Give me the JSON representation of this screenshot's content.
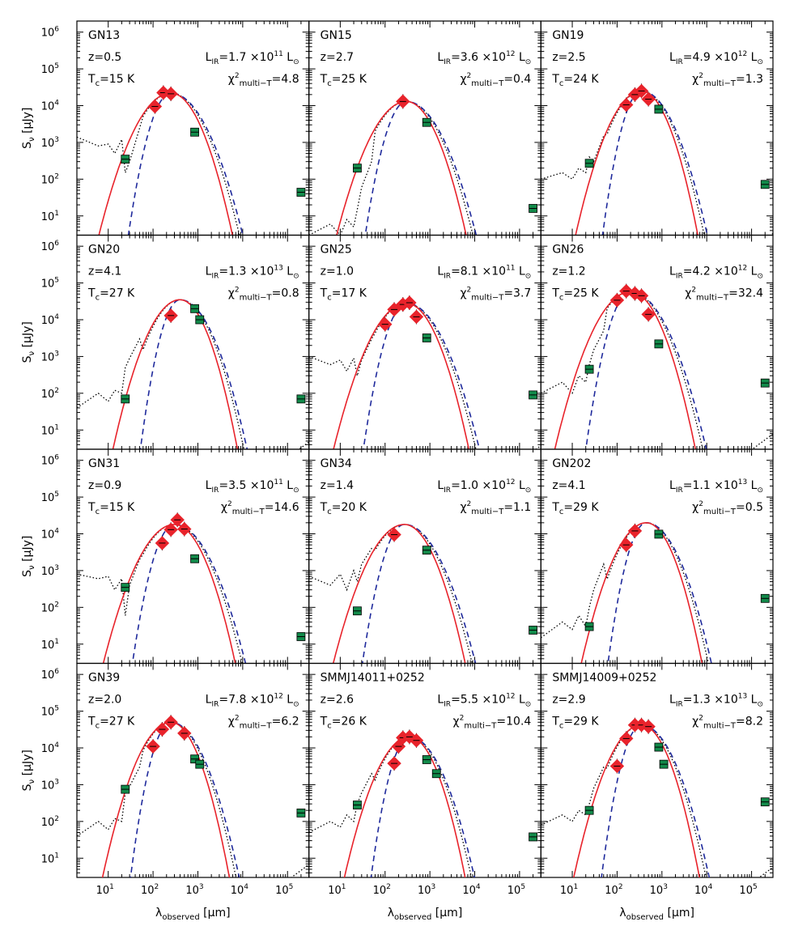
{
  "figure": {
    "ylabel": "S",
    "ylabel_sub": "ν",
    "ylabel_unit": "[μJy]",
    "xlabel": "λ",
    "xlabel_sub": "observed",
    "xlabel_unit": "[μm]",
    "y_tick_labels": [
      "10",
      "10",
      "10",
      "10",
      "10",
      "10"
    ],
    "y_tick_exps": [
      "1",
      "2",
      "3",
      "4",
      "5",
      "6"
    ],
    "x_tick_labels": [
      "10",
      "10",
      "10",
      "10",
      "10"
    ],
    "x_tick_exps": [
      "1",
      "2",
      "3",
      "4",
      "5"
    ]
  },
  "chart_data": [
    {
      "type": "scatter",
      "name": "GN13",
      "z": "z=0.5",
      "tc": "T_c=15 K",
      "lir_coef": "1.7",
      "lir_exp": "11",
      "chi2": "4.8",
      "peak": [
        250,
        22000
      ],
      "width": 0.55,
      "red_pts": [
        [
          110,
          9500
        ],
        [
          170,
          22500
        ],
        [
          250,
          21000
        ]
      ],
      "green_pts": [
        [
          24,
          350
        ],
        [
          850,
          1900
        ],
        [
          200000,
          44
        ]
      ],
      "dotted_x": [
        2,
        6,
        10,
        14,
        20,
        24,
        30
      ],
      "dotted_y": [
        1400,
        800,
        900,
        500,
        1200,
        150,
        300
      ],
      "ylim": [
        3,
        2000000
      ],
      "xlim": [
        2,
        300000
      ]
    },
    {
      "type": "scatter",
      "name": "GN15",
      "z": "z=2.7",
      "tc": "T_c=25 K",
      "lir_coef": "3.6",
      "lir_exp": "12",
      "chi2": "0.4",
      "peak": [
        300,
        13000
      ],
      "width": 0.55,
      "red_pts": [
        [
          250,
          13000
        ]
      ],
      "green_pts": [
        [
          24,
          200
        ],
        [
          850,
          3500
        ],
        [
          200000,
          16
        ]
      ],
      "dotted_x": [
        2,
        6,
        10,
        14,
        20,
        24,
        30,
        50
      ],
      "dotted_y": [
        3,
        6,
        3,
        8,
        5,
        15,
        60,
        300
      ],
      "ylim": [
        3,
        2000000
      ],
      "xlim": [
        2,
        300000
      ]
    },
    {
      "type": "scatter",
      "name": "GN19",
      "z": "z=2.5",
      "tc": "T_c=24 K",
      "lir_coef": "4.9",
      "lir_exp": "12",
      "chi2": "1.3",
      "peak": [
        350,
        25000
      ],
      "width": 0.5,
      "red_pts": [
        [
          160,
          10500
        ],
        [
          250,
          20000
        ],
        [
          350,
          25000
        ],
        [
          500,
          15000
        ]
      ],
      "green_pts": [
        [
          24,
          270
        ],
        [
          850,
          8000
        ],
        [
          200000,
          72
        ]
      ],
      "dotted_x": [
        2,
        6,
        10,
        14,
        20,
        24,
        30,
        50
      ],
      "dotted_y": [
        100,
        150,
        100,
        200,
        150,
        400,
        300,
        1500
      ],
      "ylim": [
        3,
        2000000
      ],
      "xlim": [
        2,
        300000
      ]
    },
    {
      "type": "scatter",
      "name": "GN20",
      "z": "z=4.1",
      "tc": "T_c=27 K",
      "lir_coef": "1.3",
      "lir_exp": "13",
      "chi2": "0.8",
      "peak": [
        400,
        35000
      ],
      "width": 0.5,
      "red_pts": [
        [
          250,
          13000
        ]
      ],
      "green_pts": [
        [
          24,
          70
        ],
        [
          850,
          20000
        ],
        [
          1100,
          10000
        ],
        [
          200000,
          70
        ]
      ],
      "dotted_x": [
        2,
        6,
        10,
        14,
        20,
        24,
        30,
        50
      ],
      "dotted_y": [
        40,
        100,
        60,
        120,
        100,
        500,
        900,
        3000
      ],
      "ylim": [
        3,
        2000000
      ],
      "xlim": [
        2,
        300000
      ]
    },
    {
      "type": "scatter",
      "name": "GN25",
      "z": "z=1.0",
      "tc": "T_c=17 K",
      "lir_coef": "8.1",
      "lir_exp": "11",
      "chi2": "3.7",
      "peak": [
        300,
        28000
      ],
      "width": 0.55,
      "red_pts": [
        [
          100,
          7500
        ],
        [
          160,
          19000
        ],
        [
          250,
          26000
        ],
        [
          350,
          29000
        ],
        [
          500,
          12000
        ]
      ],
      "green_pts": [
        [
          850,
          3200
        ],
        [
          200000,
          90
        ]
      ],
      "dotted_x": [
        2,
        6,
        10,
        14,
        20,
        24,
        30,
        50
      ],
      "dotted_y": [
        1000,
        600,
        800,
        400,
        900,
        300,
        800,
        3000
      ],
      "ylim": [
        3,
        2000000
      ],
      "xlim": [
        2,
        300000
      ]
    },
    {
      "type": "scatter",
      "name": "GN26",
      "z": "z=1.2",
      "tc": "T_c=25 K",
      "lir_coef": "4.2",
      "lir_exp": "12",
      "chi2": "32.4",
      "peak": [
        200,
        58000
      ],
      "width": 0.55,
      "red_pts": [
        [
          100,
          34000
        ],
        [
          160,
          60000
        ],
        [
          250,
          52000
        ],
        [
          350,
          45000
        ],
        [
          500,
          14000
        ]
      ],
      "green_pts": [
        [
          24,
          450
        ],
        [
          850,
          2200
        ],
        [
          200000,
          190
        ]
      ],
      "dotted_x": [
        2,
        6,
        10,
        14,
        20,
        24,
        30,
        50
      ],
      "dotted_y": [
        100,
        200,
        100,
        300,
        200,
        600,
        1500,
        5000
      ],
      "ylim": [
        3,
        2000000
      ],
      "xlim": [
        2,
        300000
      ]
    },
    {
      "type": "scatter",
      "name": "GN31",
      "z": "z=0.9",
      "tc": "T_c=15 K",
      "lir_coef": "3.5",
      "lir_exp": "11",
      "chi2": "14.6",
      "peak": [
        300,
        18000
      ],
      "width": 0.55,
      "red_pts": [
        [
          160,
          5600
        ],
        [
          250,
          13000
        ],
        [
          350,
          24000
        ],
        [
          500,
          13500
        ]
      ],
      "green_pts": [
        [
          24,
          350
        ],
        [
          850,
          2100
        ],
        [
          200000,
          16
        ]
      ],
      "dotted_x": [
        2,
        6,
        10,
        14,
        20,
        24,
        30,
        50
      ],
      "dotted_y": [
        800,
        600,
        700,
        300,
        600,
        60,
        400,
        2000
      ],
      "ylim": [
        3,
        2000000
      ],
      "xlim": [
        2,
        300000
      ]
    },
    {
      "type": "scatter",
      "name": "GN34",
      "z": "z=1.4",
      "tc": "T_c=20 K",
      "lir_coef": "1.0",
      "lir_exp": "12",
      "chi2": "1.1",
      "peak": [
        270,
        18000
      ],
      "width": 0.55,
      "red_pts": [
        [
          160,
          9500
        ]
      ],
      "green_pts": [
        [
          24,
          80
        ],
        [
          850,
          3600
        ],
        [
          200000,
          24
        ]
      ],
      "dotted_x": [
        2,
        6,
        10,
        14,
        20,
        24,
        30,
        50
      ],
      "dotted_y": [
        700,
        400,
        800,
        300,
        1000,
        500,
        1500,
        4000
      ],
      "ylim": [
        3,
        2000000
      ],
      "xlim": [
        2,
        300000
      ]
    },
    {
      "type": "scatter",
      "name": "GN202",
      "z": "z=4.1",
      "tc": "T_c=29 K",
      "lir_coef": "1.1",
      "lir_exp": "13",
      "chi2": "0.5",
      "peak": [
        450,
        20000
      ],
      "width": 0.5,
      "red_pts": [
        [
          160,
          5000
        ],
        [
          250,
          12000
        ]
      ],
      "green_pts": [
        [
          24,
          30
        ],
        [
          850,
          9800
        ],
        [
          200000,
          175
        ]
      ],
      "dotted_x": [
        2,
        6,
        10,
        14,
        20,
        24,
        30,
        50
      ],
      "dotted_y": [
        15,
        40,
        25,
        60,
        30,
        100,
        300,
        1500
      ],
      "ylim": [
        3,
        2000000
      ],
      "xlim": [
        2,
        300000
      ]
    },
    {
      "type": "scatter",
      "name": "GN39",
      "z": "z=2.0",
      "tc": "T_c=27 K",
      "lir_coef": "7.8",
      "lir_exp": "12",
      "chi2": "6.2",
      "peak": [
        250,
        50000
      ],
      "width": 0.5,
      "red_pts": [
        [
          100,
          11000
        ],
        [
          160,
          32000
        ],
        [
          250,
          50000
        ],
        [
          500,
          25000
        ]
      ],
      "green_pts": [
        [
          24,
          750
        ],
        [
          850,
          5000
        ],
        [
          1100,
          3600
        ],
        [
          200000,
          170
        ]
      ],
      "dotted_x": [
        2,
        6,
        10,
        14,
        20,
        24,
        30,
        50
      ],
      "dotted_y": [
        40,
        100,
        60,
        120,
        100,
        600,
        900,
        3000
      ],
      "ylim": [
        3,
        2000000
      ],
      "xlim": [
        2,
        300000
      ]
    },
    {
      "type": "scatter",
      "name": "SMMJ14011+0252",
      "z": "z=2.6",
      "tc": "T_c=26 K",
      "lir_coef": "5.5",
      "lir_exp": "12",
      "chi2": "10.4",
      "peak": [
        350,
        20000
      ],
      "width": 0.5,
      "red_pts": [
        [
          160,
          3800
        ],
        [
          200,
          11000
        ],
        [
          250,
          19000
        ],
        [
          350,
          20000
        ],
        [
          500,
          16000
        ]
      ],
      "green_pts": [
        [
          24,
          280
        ],
        [
          850,
          4800
        ],
        [
          1400,
          2000
        ],
        [
          200000,
          38
        ]
      ],
      "dotted_x": [
        2,
        6,
        10,
        14,
        20,
        24,
        30,
        50
      ],
      "dotted_y": [
        50,
        100,
        70,
        150,
        100,
        300,
        600,
        2000
      ],
      "ylim": [
        3,
        2000000
      ],
      "xlim": [
        2,
        300000
      ]
    },
    {
      "type": "scatter",
      "name": "SMMJ14009+0252",
      "z": "z=2.9",
      "tc": "T_c=29 K",
      "lir_coef": "1.3",
      "lir_exp": "13",
      "chi2": "8.2",
      "peak": [
        350,
        42000
      ],
      "width": 0.5,
      "red_pts": [
        [
          100,
          3200
        ],
        [
          160,
          18000
        ],
        [
          250,
          42000
        ],
        [
          350,
          42000
        ],
        [
          500,
          38000
        ]
      ],
      "green_pts": [
        [
          24,
          200
        ],
        [
          850,
          10500
        ],
        [
          1100,
          3600
        ],
        [
          200000,
          340
        ]
      ],
      "dotted_x": [
        2,
        6,
        10,
        14,
        20,
        24,
        30,
        50
      ],
      "dotted_y": [
        80,
        150,
        100,
        200,
        150,
        300,
        800,
        3000
      ],
      "ylim": [
        3,
        2000000
      ],
      "xlim": [
        2,
        300000
      ]
    }
  ]
}
